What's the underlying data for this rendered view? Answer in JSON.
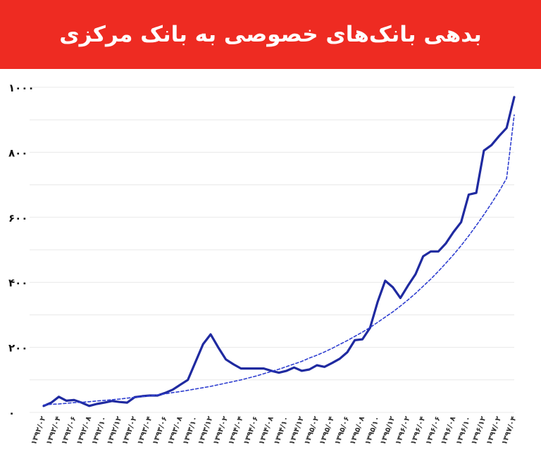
{
  "header": {
    "title": "بدهی بانک‌های خصوصی به بانک مرکزی"
  },
  "colors": {
    "banner": "#ee2b22",
    "banner_text": "#ffffff",
    "line": "#1f2aa0",
    "trend": "#2f3fd0",
    "grid": "#e8e8e8"
  },
  "chart_data": {
    "type": "line",
    "title": "بدهی بانک‌های خصوصی به بانک مرکزی",
    "xlabel": "",
    "ylabel": "",
    "ylim": [
      0,
      1000
    ],
    "yticks": [
      0,
      200,
      400,
      600,
      800,
      1000
    ],
    "ytick_labels": [
      "۰",
      "۲۰۰",
      "۴۰۰",
      "۶۰۰",
      "۸۰۰",
      "۱۰۰۰"
    ],
    "grid": true,
    "x": [
      "۱۳۹۲/۰۲",
      "",
      "۱۳۹۲/۰۴",
      "",
      "۱۳۹۲/۰۶",
      "",
      "۱۳۹۲/۰۸",
      "",
      "۱۳۹۲/۱۰",
      "",
      "۱۳۹۲/۱۲",
      "",
      "۱۳۹۳/۰۲",
      "",
      "۱۳۹۳/۰۴",
      "",
      "۱۳۹۳/۰۶",
      "",
      "۱۳۹۳/۰۸",
      "",
      "۱۳۹۳/۱۰",
      "",
      "۱۳۹۳/۱۲",
      "",
      "۱۳۹۴/۰۲",
      "",
      "۱۳۹۴/۰۴",
      "",
      "۱۳۹۴/۰۶",
      "",
      "۱۳۹۴/۰۸",
      "",
      "۱۳۹۴/۱۰",
      "",
      "۱۳۹۴/۱۲",
      "",
      "۱۳۹۵/۰۲",
      "",
      "۱۳۹۵/۰۴",
      "",
      "۱۳۹۵/۰۶",
      "",
      "۱۳۹۵/۰۸",
      "",
      "۱۳۹۵/۱۰",
      "",
      "۱۳۹۵/۱۲",
      "",
      "۱۳۹۶/۰۲",
      "",
      "۱۳۹۶/۰۴",
      "",
      "۱۳۹۶/۰۶",
      "",
      "۱۳۹۶/۰۸",
      "",
      "۱۳۹۶/۱۰",
      "",
      "۱۳۹۶/۱۲",
      "",
      "۱۳۹۷/۰۲",
      "",
      "۱۳۹۷/۰۴"
    ],
    "series": [
      {
        "values": [
          20,
          30,
          48,
          36,
          38,
          30,
          20,
          26,
          30,
          35,
          32,
          30,
          47,
          50,
          52,
          52,
          60,
          70,
          85,
          100,
          155,
          210,
          240,
          200,
          163,
          148,
          135,
          135,
          135,
          135,
          128,
          122,
          128,
          138,
          128,
          132,
          145,
          140,
          152,
          165,
          185,
          222,
          225,
          260,
          340,
          405,
          385,
          352,
          390,
          425,
          480,
          495,
          495,
          520,
          555,
          585,
          670,
          675,
          805,
          822,
          850,
          875,
          970
        ]
      },
      {
        "type": "trend",
        "values": [
          23,
          25,
          26,
          28,
          30,
          31,
          33,
          35,
          37,
          39,
          41,
          44,
          46,
          49,
          51,
          54,
          57,
          61,
          64,
          68,
          72,
          76,
          80,
          85,
          90,
          95,
          100,
          106,
          112,
          119,
          126,
          133,
          141,
          149,
          157,
          167,
          176,
          186,
          197,
          209,
          221,
          234,
          247,
          261,
          277,
          293,
          309,
          327,
          346,
          366,
          388,
          410,
          434,
          459,
          485,
          513,
          543,
          575,
          608,
          643,
          680,
          720,
          915
        ]
      }
    ]
  }
}
